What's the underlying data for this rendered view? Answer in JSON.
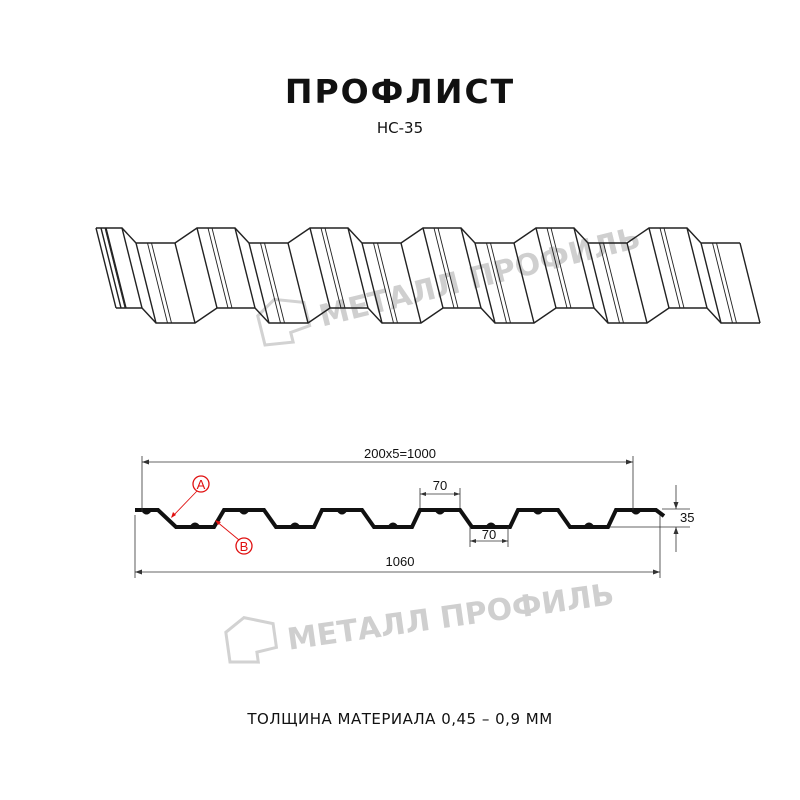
{
  "title": "ПРОФЛИСТ",
  "subtitle": "НС-35",
  "watermark": "МЕТАЛЛ ПРОФИЛЬ",
  "dimensions": {
    "pitch": "200x5=1000",
    "top_width": "70",
    "bottom_width": "70",
    "height": "35",
    "total_width": "1060"
  },
  "markers": {
    "a": "A",
    "b": "B"
  },
  "footer": "ТОЛЩИНА МАТЕРИАЛА 0,45 – 0,9 ММ",
  "colors": {
    "marker": "#e01010",
    "line": "#111111",
    "watermark": "#cfcfcf"
  }
}
